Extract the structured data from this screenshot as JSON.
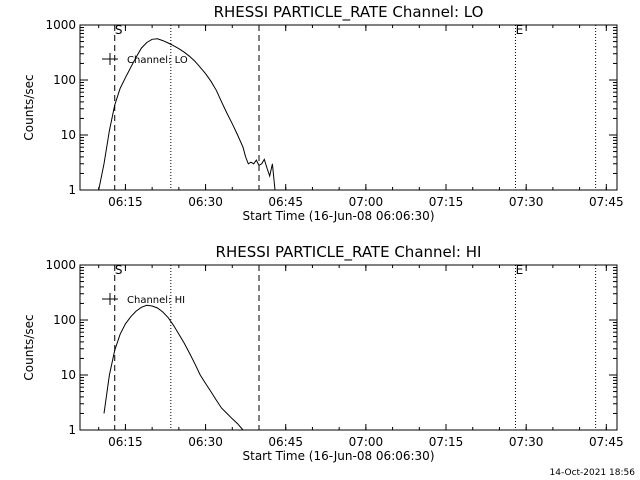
{
  "chart_data": [
    {
      "type": "line",
      "title": "RHESSI PARTICLE_RATE Channel: LO",
      "xlabel": "Start Time (16-Jun-08 06:06:30)",
      "ylabel": "Counts/sec",
      "yscale": "log",
      "ylim": [
        1,
        1000
      ],
      "xlim": [
        "06:06:30",
        "07:47:00"
      ],
      "x_ticks": [
        "06:15",
        "06:30",
        "06:45",
        "07:00",
        "07:15",
        "07:30",
        "07:45"
      ],
      "y_ticks": [
        "1",
        "10",
        "100",
        "1000"
      ],
      "legend": {
        "entries": [
          "Channel: LO"
        ],
        "position": "top-left"
      },
      "markers": [
        {
          "label": "S",
          "time": "06:13:00",
          "style": "dashed"
        },
        {
          "label": "",
          "time": "06:23:30",
          "style": "dotted"
        },
        {
          "label": "",
          "time": "06:40:00",
          "style": "dashed"
        },
        {
          "label": "E",
          "time": "07:28:00",
          "style": "dotted"
        },
        {
          "label": "",
          "time": "07:43:00",
          "style": "dotted"
        }
      ],
      "series": [
        {
          "name": "Channel: LO",
          "x": [
            "06:10:00",
            "06:11:00",
            "06:12:00",
            "06:13:00",
            "06:14:00",
            "06:15:00",
            "06:16:00",
            "06:17:00",
            "06:18:00",
            "06:19:00",
            "06:20:00",
            "06:21:00",
            "06:22:00",
            "06:23:00",
            "06:24:00",
            "06:25:00",
            "06:26:00",
            "06:27:00",
            "06:28:00",
            "06:29:00",
            "06:30:00",
            "06:31:00",
            "06:32:00",
            "06:33:00",
            "06:34:00",
            "06:35:00",
            "06:36:00",
            "06:37:00",
            "06:37:30",
            "06:38:00",
            "06:38:30",
            "06:39:00",
            "06:39:30",
            "06:40:00",
            "06:40:30",
            "06:41:00",
            "06:41:30",
            "06:42:00",
            "06:42:30",
            "06:43:00"
          ],
          "y": [
            1,
            3,
            12,
            35,
            70,
            110,
            170,
            260,
            380,
            480,
            550,
            560,
            520,
            470,
            420,
            370,
            320,
            270,
            220,
            170,
            130,
            95,
            65,
            40,
            25,
            16,
            10,
            6,
            4,
            3,
            3.2,
            3,
            3.5,
            2.8,
            3,
            3.6,
            2.5,
            1.8,
            3,
            1
          ]
        }
      ]
    },
    {
      "type": "line",
      "title": "RHESSI PARTICLE_RATE Channel: HI",
      "xlabel": "Start Time (16-Jun-08 06:06:30)",
      "ylabel": "Counts/sec",
      "yscale": "log",
      "ylim": [
        1,
        1000
      ],
      "xlim": [
        "06:06:30",
        "07:47:00"
      ],
      "x_ticks": [
        "06:15",
        "06:30",
        "06:45",
        "07:00",
        "07:15",
        "07:30",
        "07:45"
      ],
      "y_ticks": [
        "1",
        "10",
        "100",
        "1000"
      ],
      "legend": {
        "entries": [
          "Channel: HI"
        ],
        "position": "top-left"
      },
      "markers": [
        {
          "label": "S",
          "time": "06:13:00",
          "style": "dashed"
        },
        {
          "label": "",
          "time": "06:23:30",
          "style": "dotted"
        },
        {
          "label": "",
          "time": "06:40:00",
          "style": "dashed"
        },
        {
          "label": "E",
          "time": "07:28:00",
          "style": "dotted"
        },
        {
          "label": "",
          "time": "07:43:00",
          "style": "dotted"
        }
      ],
      "series": [
        {
          "name": "Channel: HI",
          "x": [
            "06:11:00",
            "06:12:00",
            "06:13:00",
            "06:14:00",
            "06:15:00",
            "06:16:00",
            "06:17:00",
            "06:18:00",
            "06:19:00",
            "06:20:00",
            "06:21:00",
            "06:22:00",
            "06:23:00",
            "06:24:00",
            "06:25:00",
            "06:26:00",
            "06:27:00",
            "06:28:00",
            "06:29:00",
            "06:30:00",
            "06:31:00",
            "06:32:00",
            "06:33:00",
            "06:34:00",
            "06:35:00",
            "06:36:00",
            "06:37:00"
          ],
          "y": [
            2,
            10,
            28,
            55,
            85,
            115,
            145,
            170,
            185,
            180,
            165,
            140,
            110,
            80,
            55,
            38,
            25,
            16,
            10,
            7,
            5,
            3.5,
            2.5,
            2,
            1.6,
            1.3,
            1
          ]
        }
      ]
    }
  ],
  "footer": {
    "timestamp": "14-Oct-2021 18:56"
  }
}
